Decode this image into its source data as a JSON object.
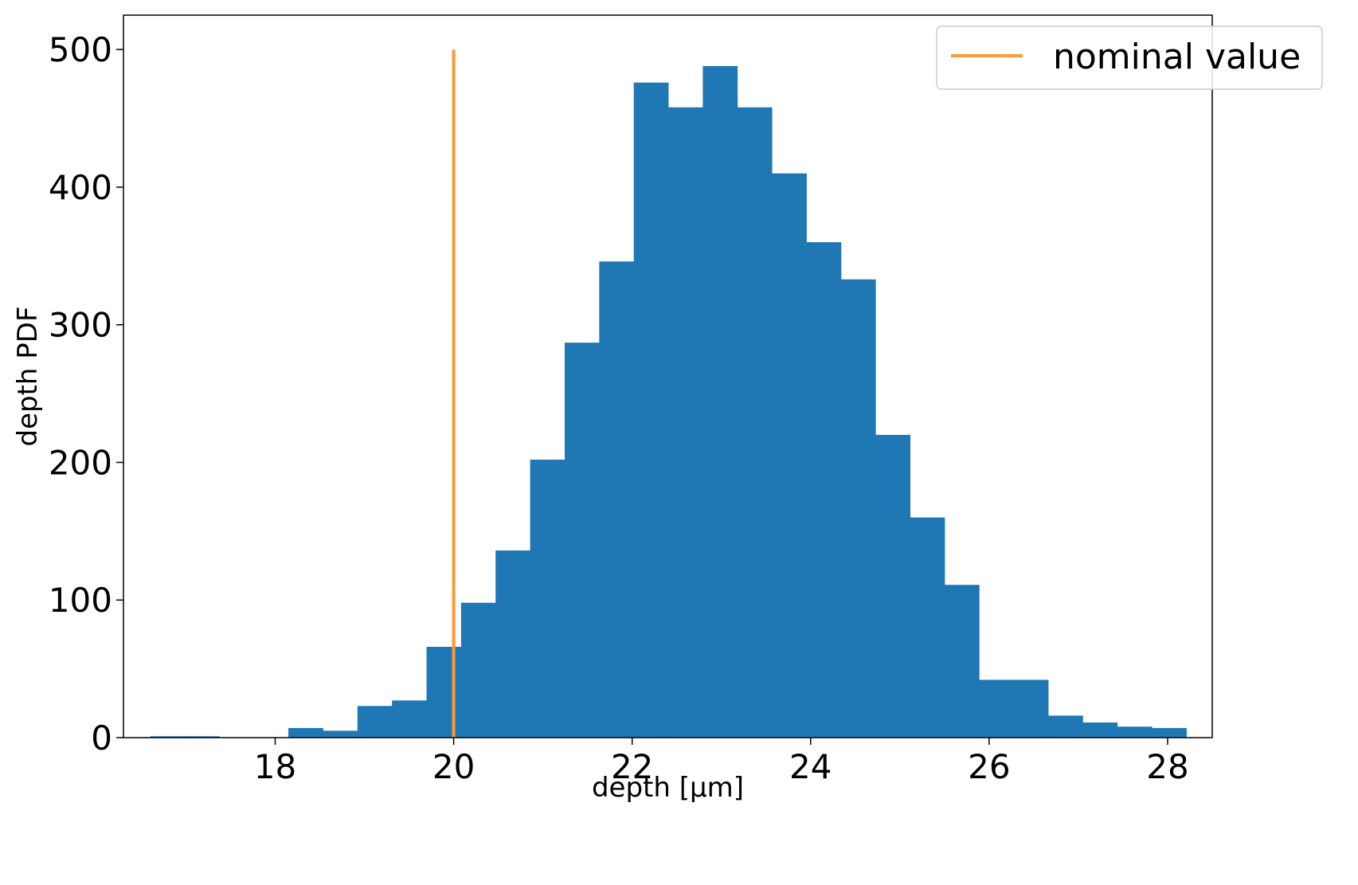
{
  "chart_data": {
    "type": "bar",
    "xlabel": "depth [µm]",
    "ylabel": "depth PDF",
    "xlim": [
      16.3,
      28.5
    ],
    "ylim": [
      0,
      525
    ],
    "xticks": [
      18,
      20,
      22,
      24,
      26,
      28
    ],
    "xtick_labels": [
      "18",
      "20",
      "22",
      "24",
      "26",
      "28"
    ],
    "yticks": [
      0,
      100,
      200,
      300,
      400,
      500
    ],
    "ytick_labels": [
      "0",
      "100",
      "200",
      "300",
      "400",
      "500"
    ],
    "grid": false,
    "legend_position": "top-right",
    "series": [
      {
        "kind": "histogram",
        "color": "#1f77b4",
        "bin_edges": [
          16.6,
          16.987,
          17.374,
          17.761,
          18.148,
          18.535,
          18.922,
          19.309,
          19.696,
          20.083,
          20.47,
          20.857,
          21.244,
          21.631,
          22.018,
          22.405,
          22.792,
          23.179,
          23.566,
          23.953,
          24.34,
          24.727,
          25.114,
          25.501,
          25.888,
          26.275,
          26.662,
          27.049,
          27.436,
          27.823,
          28.21
        ],
        "values": [
          1,
          1,
          0,
          0,
          7,
          5,
          23,
          27,
          66,
          98,
          136,
          202,
          287,
          346,
          476,
          458,
          488,
          458,
          410,
          360,
          333,
          220,
          160,
          111,
          42,
          42,
          16,
          11,
          8,
          7
        ]
      },
      {
        "name": "nominal value",
        "kind": "vline",
        "color": "#ff9933",
        "x": 20.0,
        "y_range": [
          0,
          500
        ]
      }
    ]
  }
}
